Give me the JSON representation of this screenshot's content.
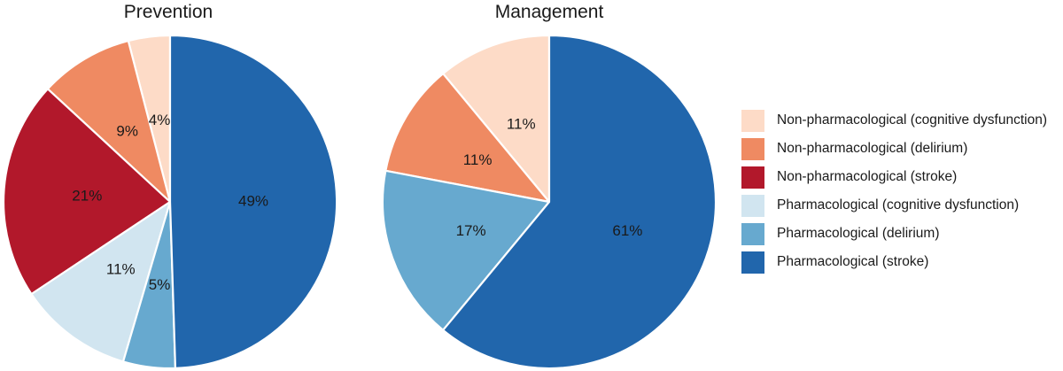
{
  "chart_data": [
    {
      "id": "prevention",
      "type": "pie",
      "title": "Prevention",
      "start_angle_deg": 90,
      "counterclockwise": true,
      "label_distance": 0.5,
      "slice_separator_color": "#ffffff",
      "slices": [
        {
          "category": "Non-pharmacological (cognitive dysfunction)",
          "value": 4,
          "label": "4%",
          "color": "#fddbc7"
        },
        {
          "category": "Non-pharmacological (delirium)",
          "value": 9,
          "label": "9%",
          "color": "#ef8a62"
        },
        {
          "category": "Non-pharmacological (stroke)",
          "value": 21,
          "label": "21%",
          "color": "#b2182b"
        },
        {
          "category": "Pharmacological (cognitive dysfunction)",
          "value": 11,
          "label": "11%",
          "color": "#d1e5f0"
        },
        {
          "category": "Pharmacological (delirium)",
          "value": 5,
          "label": "5%",
          "color": "#67a9cf"
        },
        {
          "category": "Pharmacological (stroke)",
          "value": 49,
          "label": "49%",
          "color": "#2166ac"
        }
      ]
    },
    {
      "id": "management",
      "type": "pie",
      "title": "Management",
      "start_angle_deg": 90,
      "counterclockwise": true,
      "label_distance": 0.5,
      "slice_separator_color": "#ffffff",
      "slices": [
        {
          "category": "Non-pharmacological (cognitive dysfunction)",
          "value": 11,
          "label": "11%",
          "color": "#fddbc7"
        },
        {
          "category": "Non-pharmacological (delirium)",
          "value": 11,
          "label": "11%",
          "color": "#ef8a62"
        },
        {
          "category": "Pharmacological (delirium)",
          "value": 17,
          "label": "17%",
          "color": "#67a9cf"
        },
        {
          "category": "Pharmacological (stroke)",
          "value": 61,
          "label": "61%",
          "color": "#2166ac"
        }
      ]
    }
  ],
  "legend": {
    "position": "right",
    "items": [
      {
        "label": "Non-pharmacological (cognitive dysfunction)",
        "color": "#fddbc7"
      },
      {
        "label": "Non-pharmacological (delirium)",
        "color": "#ef8a62"
      },
      {
        "label": "Non-pharmacological (stroke)",
        "color": "#b2182b"
      },
      {
        "label": "Pharmacological (cognitive dysfunction)",
        "color": "#d1e5f0"
      },
      {
        "label": "Pharmacological (delirium)",
        "color": "#67a9cf"
      },
      {
        "label": "Pharmacological (stroke)",
        "color": "#2166ac"
      }
    ]
  },
  "text_color": "#1a1a1a"
}
